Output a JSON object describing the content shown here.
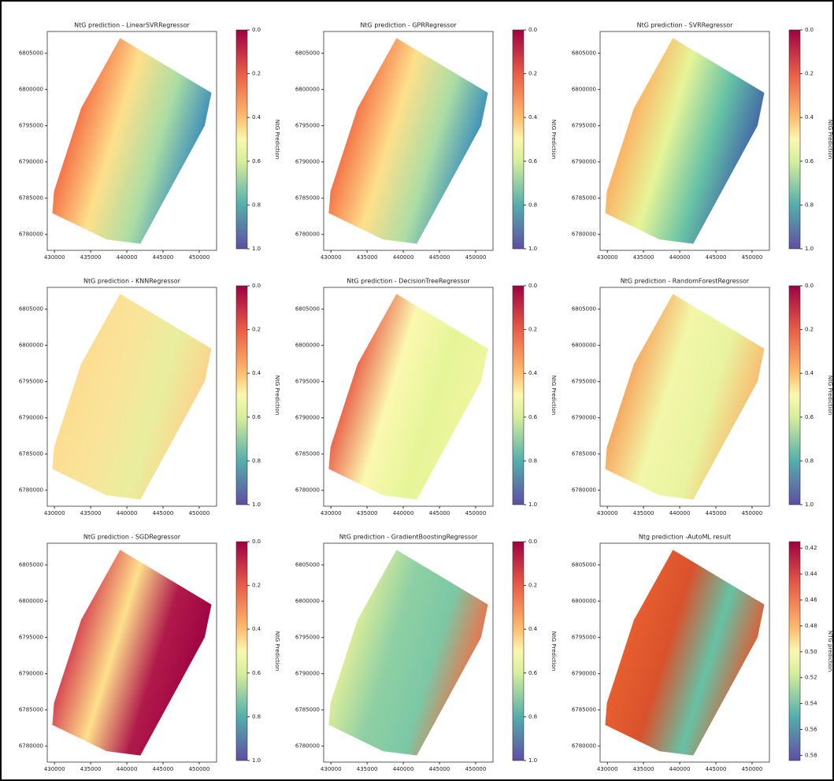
{
  "panels": [
    {
      "title": "NtG prediction - LinearSVRRegressor",
      "colorbar": {
        "label": "NtG Prediction",
        "ticks": [
          0.0,
          0.2,
          0.4,
          0.6,
          0.8,
          1.0
        ],
        "lim": [
          0,
          1
        ]
      }
    },
    {
      "title": "NtG prediction - GPRRegressor",
      "colorbar": {
        "label": "NtG Prediction",
        "ticks": [
          0.0,
          0.2,
          0.4,
          0.6,
          0.8,
          1.0
        ],
        "lim": [
          0,
          1
        ]
      }
    },
    {
      "title": "NtG prediction - SVRRegressor",
      "colorbar": {
        "label": "NtG Prediction",
        "ticks": [
          0.0,
          0.2,
          0.4,
          0.6,
          0.8,
          1.0
        ],
        "lim": [
          0,
          1
        ]
      }
    },
    {
      "title": "NtG prediction - KNNRegressor",
      "colorbar": {
        "label": "NtG Prediction",
        "ticks": [
          0.0,
          0.2,
          0.4,
          0.6,
          0.8,
          1.0
        ],
        "lim": [
          0,
          1
        ]
      }
    },
    {
      "title": "NtG prediction - DecisionTreeRegressor",
      "colorbar": {
        "label": "NtG Prediction",
        "ticks": [
          0.0,
          0.2,
          0.4,
          0.6,
          0.8,
          1.0
        ],
        "lim": [
          0,
          1
        ]
      }
    },
    {
      "title": "NtG prediction - RandomForestRegressor",
      "colorbar": {
        "label": "NtG Prediction",
        "ticks": [
          0.0,
          0.2,
          0.4,
          0.6,
          0.8,
          1.0
        ],
        "lim": [
          0,
          1
        ]
      }
    },
    {
      "title": "NtG prediction - SGDRegressor",
      "colorbar": {
        "label": "NtG Prediction",
        "ticks": [
          0.0,
          0.2,
          0.4,
          0.6,
          0.8,
          1.0
        ],
        "lim": [
          0,
          1
        ]
      }
    },
    {
      "title": "NtG prediction - GradientBoostingRegressor",
      "colorbar": {
        "label": "NtG Prediction",
        "ticks": [
          0.0,
          0.2,
          0.4,
          0.6,
          0.8,
          1.0
        ],
        "lim": [
          0,
          1
        ]
      }
    },
    {
      "title": "Ntg prediction -AutoML result",
      "colorbar": {
        "label": "NTG prediction",
        "ticks": [
          0.42,
          0.44,
          0.46,
          0.48,
          0.5,
          0.52,
          0.54,
          0.56,
          0.58
        ],
        "lim": [
          0.415,
          0.584
        ]
      }
    }
  ],
  "axes": {
    "xlim": [
      429000,
      452400
    ],
    "ylim": [
      6777800,
      6808000
    ],
    "xticks": [
      430000,
      435000,
      440000,
      445000,
      450000
    ],
    "yticks": [
      6780000,
      6785000,
      6790000,
      6795000,
      6800000,
      6805000
    ]
  }
}
